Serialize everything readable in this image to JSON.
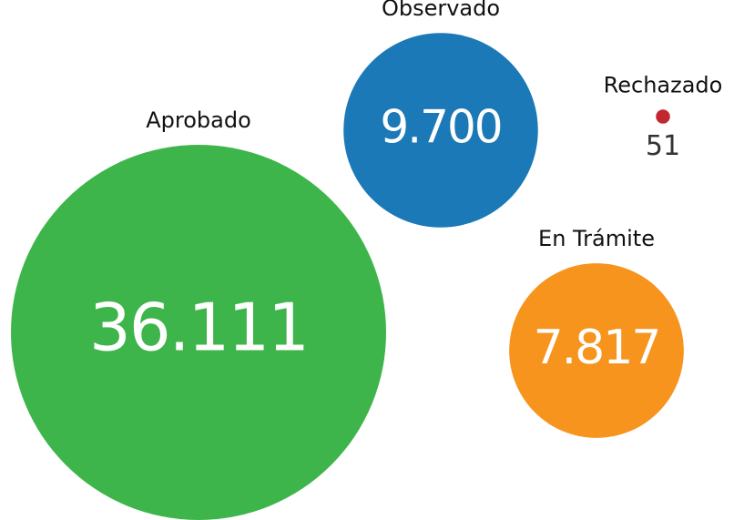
{
  "chart_data": {
    "type": "bubble",
    "categories": [
      "Aprobado",
      "Observado",
      "Rechazado",
      "En Trámite"
    ],
    "values": [
      36111,
      9700,
      51,
      7817
    ],
    "value_labels": [
      "36.111",
      "9.700",
      "51",
      "7.817"
    ],
    "colors": [
      "#3db54a",
      "#1a79b6",
      "#c1272d",
      "#f7941d"
    ]
  }
}
